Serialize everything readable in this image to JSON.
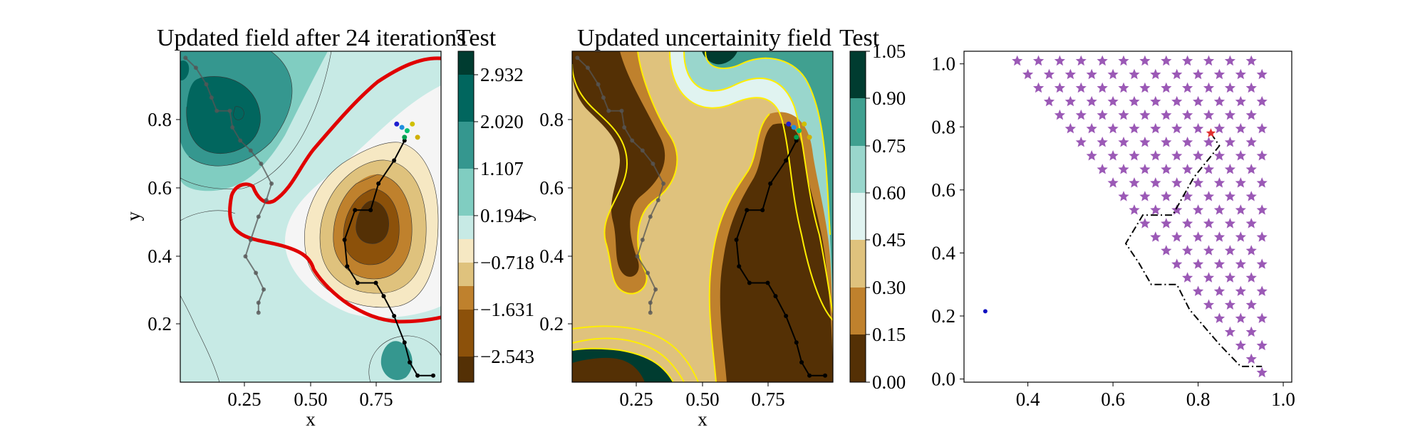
{
  "figure": {
    "background": "#ffffff"
  },
  "chart_data": [
    {
      "type": "contour",
      "title": "Updated field after 24 iterations",
      "xlabel": "x",
      "ylabel": "y",
      "xticks": [
        "0.25",
        "0.50",
        "0.75"
      ],
      "yticks": [
        "0.2",
        "0.4",
        "0.6",
        "0.8"
      ],
      "xlim": [
        0.0,
        1.0
      ],
      "ylim": [
        0.0,
        1.0
      ],
      "colorbar": {
        "title": "Test",
        "ticks": [
          "2.932",
          "2.020",
          "1.107",
          "0.194",
          "−0.718",
          "−1.631",
          "−2.543"
        ],
        "range": [
          -3.0,
          3.39
        ],
        "colors": [
          "#543005",
          "#8c510a",
          "#bf812d",
          "#dfc27d",
          "#f6e8c3",
          "#f5f5f5",
          "#c7eae5",
          "#80cdc1",
          "#35978f",
          "#01665e",
          "#003c30"
        ]
      },
      "threshold_contour_color": "#e00000",
      "path_past": [
        [
          0.02,
          0.98
        ],
        [
          0.06,
          0.95
        ],
        [
          0.1,
          0.9
        ],
        [
          0.12,
          0.86
        ],
        [
          0.14,
          0.82
        ],
        [
          0.19,
          0.82
        ],
        [
          0.2,
          0.77
        ],
        [
          0.23,
          0.73
        ],
        [
          0.27,
          0.7
        ],
        [
          0.31,
          0.66
        ],
        [
          0.35,
          0.6
        ],
        [
          0.33,
          0.55
        ],
        [
          0.3,
          0.5
        ],
        [
          0.27,
          0.43
        ],
        [
          0.25,
          0.38
        ],
        [
          0.29,
          0.33
        ],
        [
          0.32,
          0.28
        ],
        [
          0.3,
          0.24
        ],
        [
          0.3,
          0.21
        ]
      ],
      "path_current": [
        [
          0.86,
          0.73
        ],
        [
          0.82,
          0.67
        ],
        [
          0.76,
          0.6
        ],
        [
          0.73,
          0.52
        ],
        [
          0.67,
          0.52
        ],
        [
          0.63,
          0.43
        ],
        [
          0.64,
          0.35
        ],
        [
          0.68,
          0.3
        ],
        [
          0.75,
          0.3
        ],
        [
          0.78,
          0.26
        ],
        [
          0.82,
          0.2
        ],
        [
          0.86,
          0.12
        ],
        [
          0.88,
          0.06
        ],
        [
          0.91,
          0.02
        ],
        [
          0.97,
          0.02
        ]
      ],
      "samples": [
        {
          "x": 0.83,
          "y": 0.78,
          "color": "#1f1fd0"
        },
        {
          "x": 0.85,
          "y": 0.77,
          "color": "#1f8fdf"
        },
        {
          "x": 0.87,
          "y": 0.76,
          "color": "#00c070"
        },
        {
          "x": 0.89,
          "y": 0.78,
          "color": "#d0c000"
        },
        {
          "x": 0.91,
          "y": 0.74,
          "color": "#d0b000"
        },
        {
          "x": 0.86,
          "y": 0.74,
          "color": "#00a050"
        }
      ]
    },
    {
      "type": "contour",
      "title": "Updated uncertainity field",
      "xlabel": "x",
      "ylabel": "y",
      "xticks": [
        "0.25",
        "0.50",
        "0.75"
      ],
      "yticks": [
        "0.2",
        "0.4",
        "0.6",
        "0.8"
      ],
      "xlim": [
        0.0,
        1.0
      ],
      "ylim": [
        0.0,
        1.0
      ],
      "colorbar": {
        "title": "Test",
        "ticks": [
          "1.05",
          "0.90",
          "0.75",
          "0.60",
          "0.45",
          "0.30",
          "0.15",
          "0.00"
        ],
        "range": [
          0.0,
          1.05
        ],
        "colors": [
          "#543005",
          "#bf812d",
          "#dfc27d",
          "#e0f3f0",
          "#99d6cc",
          "#40a090",
          "#003c30"
        ]
      },
      "level_line_color": "#ffee00",
      "path_past": [
        [
          0.02,
          0.98
        ],
        [
          0.06,
          0.95
        ],
        [
          0.1,
          0.9
        ],
        [
          0.12,
          0.86
        ],
        [
          0.14,
          0.82
        ],
        [
          0.19,
          0.82
        ],
        [
          0.2,
          0.77
        ],
        [
          0.23,
          0.73
        ],
        [
          0.27,
          0.7
        ],
        [
          0.31,
          0.66
        ],
        [
          0.35,
          0.6
        ],
        [
          0.33,
          0.55
        ],
        [
          0.3,
          0.5
        ],
        [
          0.27,
          0.43
        ],
        [
          0.25,
          0.38
        ],
        [
          0.29,
          0.33
        ],
        [
          0.32,
          0.28
        ],
        [
          0.3,
          0.24
        ],
        [
          0.3,
          0.21
        ]
      ],
      "path_current": [
        [
          0.86,
          0.73
        ],
        [
          0.82,
          0.67
        ],
        [
          0.76,
          0.6
        ],
        [
          0.73,
          0.52
        ],
        [
          0.67,
          0.52
        ],
        [
          0.63,
          0.43
        ],
        [
          0.64,
          0.35
        ],
        [
          0.68,
          0.3
        ],
        [
          0.75,
          0.3
        ],
        [
          0.78,
          0.26
        ],
        [
          0.82,
          0.2
        ],
        [
          0.86,
          0.12
        ],
        [
          0.88,
          0.06
        ],
        [
          0.91,
          0.02
        ],
        [
          0.97,
          0.02
        ]
      ],
      "samples": [
        {
          "x": 0.83,
          "y": 0.78,
          "color": "#1f1fd0"
        },
        {
          "x": 0.85,
          "y": 0.77,
          "color": "#1f8fdf"
        },
        {
          "x": 0.87,
          "y": 0.76,
          "color": "#00c070"
        },
        {
          "x": 0.89,
          "y": 0.78,
          "color": "#d0c000"
        },
        {
          "x": 0.91,
          "y": 0.74,
          "color": "#d0b000"
        },
        {
          "x": 0.86,
          "y": 0.74,
          "color": "#00a050"
        }
      ]
    },
    {
      "type": "scatter",
      "xlim": [
        0.25,
        1.02
      ],
      "ylim": [
        -0.01,
        1.04
      ],
      "xticks": [
        0.4,
        0.6,
        0.8,
        1.0
      ],
      "yticks": [
        0.0,
        0.2,
        0.4,
        0.6,
        0.8,
        1.0
      ],
      "xtick_labels": [
        "0.4",
        "0.6",
        "0.8",
        "1.0"
      ],
      "ytick_labels": [
        "0.0",
        "0.2",
        "0.4",
        "0.6",
        "0.8",
        "1.0"
      ],
      "star_color": "#9b59b6",
      "star_grid": {
        "x_start": 0.95,
        "x_step": 0.05,
        "y_start": 0.02,
        "y_step": 0.043,
        "rows": 24,
        "left_edge_at_top": 0.35,
        "left_edge_at_bottom": 0.95,
        "left_edge_top_y": 1.0
      },
      "path": [
        [
          0.83,
          0.78
        ],
        [
          0.85,
          0.74
        ],
        [
          0.79,
          0.64
        ],
        [
          0.74,
          0.52
        ],
        [
          0.67,
          0.52
        ],
        [
          0.63,
          0.43
        ],
        [
          0.66,
          0.37
        ],
        [
          0.69,
          0.3
        ],
        [
          0.75,
          0.3
        ],
        [
          0.78,
          0.22
        ],
        [
          0.85,
          0.11
        ],
        [
          0.9,
          0.04
        ],
        [
          0.95,
          0.04
        ]
      ],
      "path_color": "#000000",
      "highlight": {
        "x": 0.83,
        "y": 0.78,
        "color": "#e03030"
      },
      "outlier": {
        "x": 0.3,
        "y": 0.215,
        "color": "#1010c0"
      }
    }
  ]
}
